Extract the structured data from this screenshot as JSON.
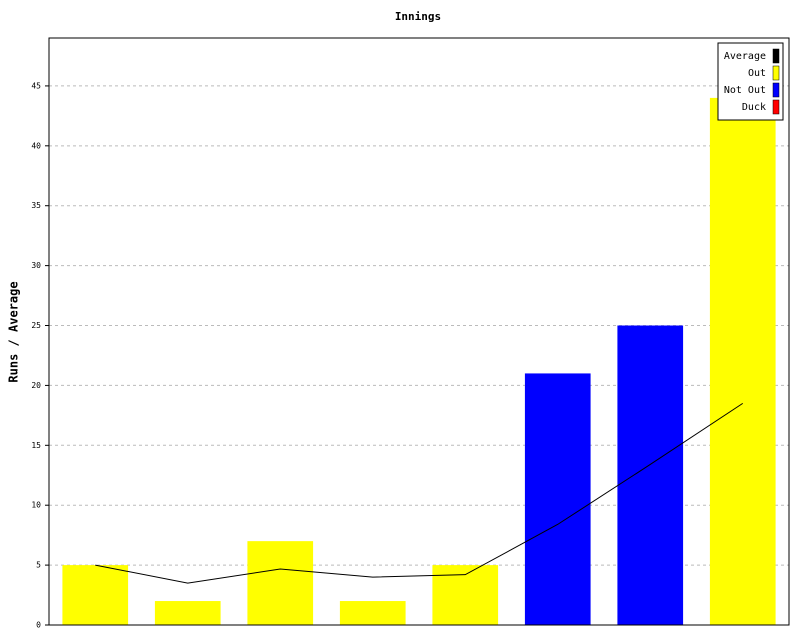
{
  "chart_data": {
    "type": "bar",
    "title": "Innings",
    "y_label": "Runs / Average",
    "categories": [
      null,
      null,
      null,
      null,
      null,
      null,
      null,
      null
    ],
    "series": [
      {
        "name": "Average",
        "color": "#000000",
        "type": "line",
        "values": [
          5,
          3.5,
          4.67,
          4,
          4.2,
          8.4,
          13.4,
          18.5
        ]
      },
      {
        "name": "Out",
        "color": "#ffff00",
        "values": [
          5,
          2,
          7,
          2,
          5,
          null,
          null,
          44
        ]
      },
      {
        "name": "Not Out",
        "color": "#0000ff",
        "values": [
          null,
          null,
          null,
          null,
          null,
          21,
          25,
          null
        ]
      },
      {
        "name": "Duck",
        "color": "#ff0000",
        "values": [
          null,
          null,
          null,
          null,
          null,
          null,
          null,
          null
        ]
      }
    ],
    "ylim": [
      0,
      49
    ],
    "yticks": [
      0,
      5,
      10,
      15,
      20,
      25,
      30,
      35,
      40,
      45
    ],
    "grid": true,
    "legend": "top-right"
  }
}
